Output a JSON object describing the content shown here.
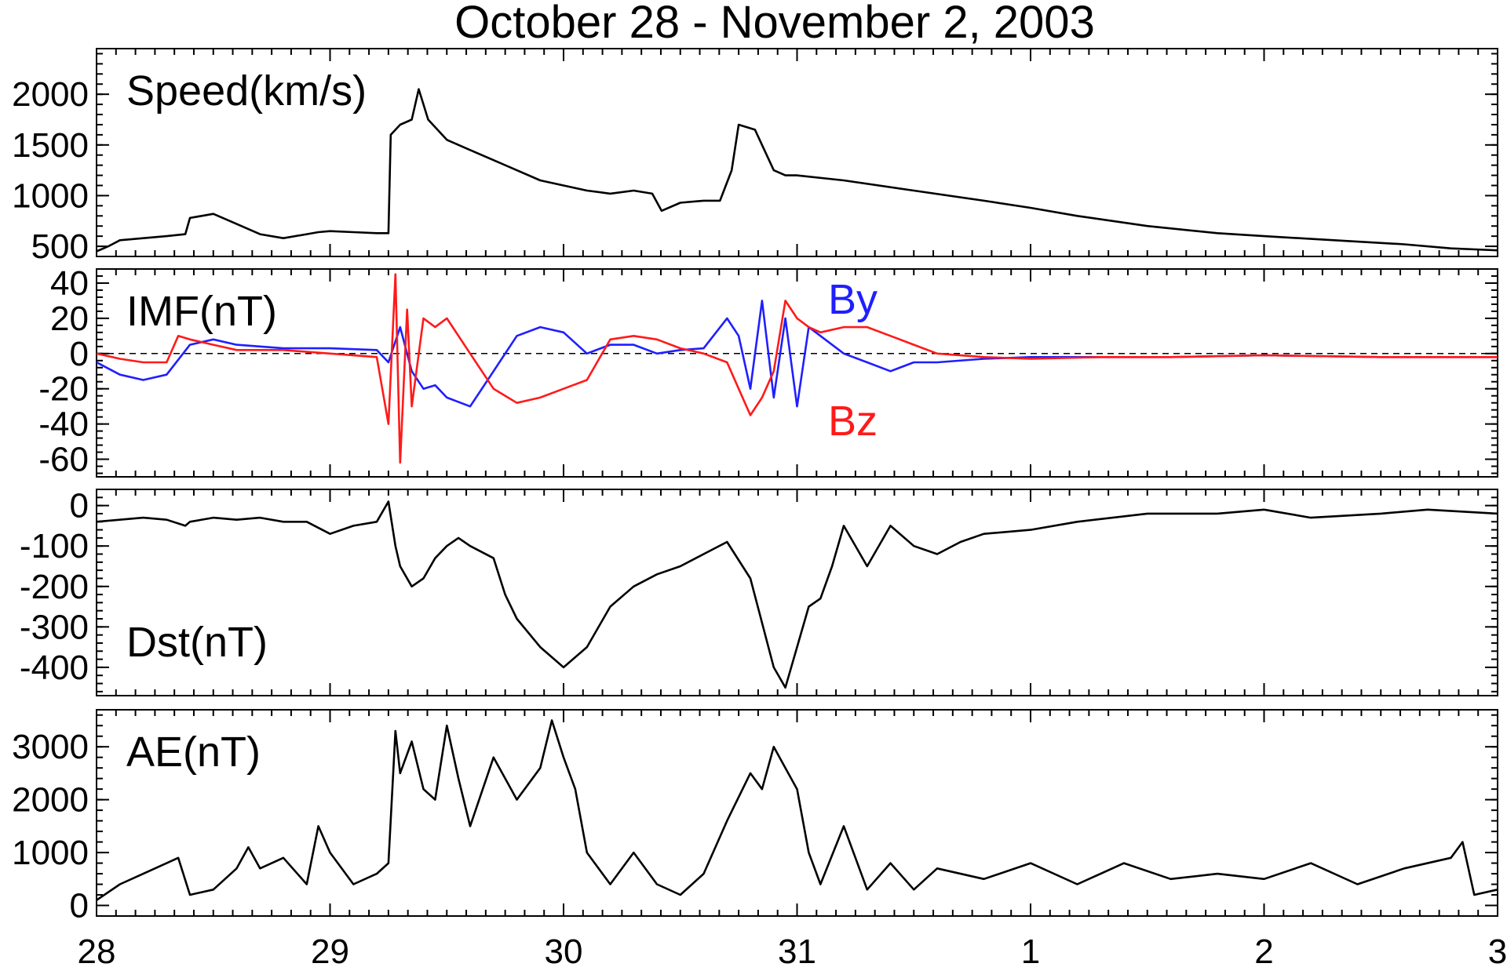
{
  "chart_data": {
    "type": "line",
    "title": "October 28 - November 2, 2003",
    "x_tick_labels": [
      "28",
      "29",
      "30",
      "31",
      "1",
      "2",
      "3"
    ],
    "x_range_days": [
      0,
      6
    ],
    "panels": [
      {
        "name": "speed",
        "label": "Speed(km/s)",
        "ylim": [
          400,
          2450
        ],
        "yticks": [
          500,
          1000,
          1500,
          2000
        ],
        "ytick_labels": [
          "500",
          "1000",
          "1500",
          "2000"
        ],
        "series": [
          {
            "color": "#000000",
            "x": [
              0,
              0.05,
              0.1,
              0.2,
              0.3,
              0.38,
              0.4,
              0.45,
              0.5,
              0.6,
              0.7,
              0.8,
              0.9,
              0.95,
              1.0,
              1.1,
              1.2,
              1.25,
              1.26,
              1.3,
              1.35,
              1.38,
              1.42,
              1.5,
              1.6,
              1.7,
              1.8,
              1.9,
              2.0,
              2.1,
              2.2,
              2.3,
              2.38,
              2.42,
              2.5,
              2.6,
              2.67,
              2.72,
              2.75,
              2.82,
              2.9,
              2.95,
              3.0,
              3.2,
              3.5,
              3.8,
              4.0,
              4.2,
              4.5,
              4.8,
              5.0,
              5.3,
              5.6,
              5.8,
              6.0
            ],
            "y": [
              450,
              500,
              560,
              580,
              600,
              620,
              780,
              800,
              820,
              720,
              620,
              580,
              620,
              640,
              650,
              640,
              630,
              630,
              1600,
              1700,
              1750,
              2050,
              1750,
              1550,
              1450,
              1350,
              1250,
              1150,
              1100,
              1050,
              1020,
              1050,
              1020,
              850,
              930,
              950,
              950,
              1250,
              1700,
              1650,
              1250,
              1200,
              1200,
              1150,
              1050,
              950,
              880,
              800,
              700,
              630,
              600,
              560,
              520,
              480,
              460
            ]
          }
        ]
      },
      {
        "name": "imf",
        "label": "IMF(nT)",
        "ylim": [
          -70,
          48
        ],
        "yticks": [
          -60,
          -40,
          -20,
          0,
          20,
          40
        ],
        "ytick_labels": [
          "-60",
          "-40",
          "-20",
          "0",
          "20",
          "40"
        ],
        "zero_line": true,
        "series": [
          {
            "name": "By",
            "color": "#1f1fff",
            "x": [
              0,
              0.1,
              0.2,
              0.3,
              0.4,
              0.5,
              0.6,
              0.8,
              1.0,
              1.2,
              1.25,
              1.3,
              1.35,
              1.4,
              1.45,
              1.5,
              1.6,
              1.7,
              1.8,
              1.9,
              2.0,
              2.1,
              2.2,
              2.3,
              2.4,
              2.5,
              2.6,
              2.7,
              2.75,
              2.8,
              2.85,
              2.9,
              2.95,
              3.0,
              3.05,
              3.1,
              3.2,
              3.3,
              3.4,
              3.5,
              3.6,
              3.8,
              4.0,
              4.3,
              4.6,
              5.0,
              5.5,
              6.0
            ],
            "y": [
              -5,
              -12,
              -15,
              -12,
              5,
              8,
              5,
              3,
              3,
              2,
              -5,
              15,
              -10,
              -20,
              -18,
              -25,
              -30,
              -10,
              10,
              15,
              12,
              0,
              5,
              5,
              0,
              2,
              3,
              20,
              10,
              -20,
              30,
              -25,
              20,
              -30,
              15,
              10,
              0,
              -5,
              -10,
              -5,
              -5,
              -3,
              -2,
              -2,
              -2,
              -1,
              -2,
              -2
            ]
          },
          {
            "name": "Bz",
            "color": "#ff1a1a",
            "x": [
              0,
              0.1,
              0.2,
              0.3,
              0.35,
              0.4,
              0.5,
              0.6,
              0.8,
              1.0,
              1.2,
              1.25,
              1.28,
              1.3,
              1.33,
              1.35,
              1.4,
              1.45,
              1.5,
              1.6,
              1.7,
              1.8,
              1.9,
              2.0,
              2.1,
              2.2,
              2.3,
              2.4,
              2.5,
              2.6,
              2.7,
              2.75,
              2.8,
              2.85,
              2.9,
              2.95,
              3.0,
              3.05,
              3.1,
              3.2,
              3.3,
              3.4,
              3.5,
              3.6,
              3.8,
              4.0,
              4.3,
              4.6,
              5.0,
              5.5,
              6.0
            ],
            "y": [
              0,
              -3,
              -5,
              -5,
              10,
              8,
              5,
              2,
              2,
              0,
              -2,
              -40,
              45,
              -62,
              25,
              -30,
              20,
              15,
              20,
              0,
              -20,
              -28,
              -25,
              -20,
              -15,
              8,
              10,
              8,
              3,
              0,
              -5,
              -20,
              -35,
              -25,
              -10,
              30,
              20,
              15,
              12,
              15,
              15,
              10,
              5,
              0,
              -2,
              -3,
              -2,
              -2,
              -1,
              -2,
              -2
            ]
          }
        ]
      },
      {
        "name": "dst",
        "label": "Dst(nT)",
        "ylim": [
          -470,
          40
        ],
        "yticks": [
          -400,
          -300,
          -200,
          -100,
          0
        ],
        "ytick_labels": [
          "-400",
          "-300",
          "-200",
          "-100",
          "0"
        ],
        "series": [
          {
            "color": "#000000",
            "x": [
              0,
              0.2,
              0.3,
              0.38,
              0.4,
              0.5,
              0.6,
              0.7,
              0.8,
              0.9,
              1.0,
              1.1,
              1.2,
              1.25,
              1.28,
              1.3,
              1.35,
              1.4,
              1.45,
              1.5,
              1.55,
              1.6,
              1.7,
              1.75,
              1.8,
              1.9,
              2.0,
              2.1,
              2.2,
              2.3,
              2.4,
              2.5,
              2.6,
              2.7,
              2.8,
              2.9,
              2.95,
              3.0,
              3.05,
              3.1,
              3.15,
              3.2,
              3.3,
              3.4,
              3.5,
              3.6,
              3.7,
              3.8,
              4.0,
              4.2,
              4.5,
              4.8,
              5.0,
              5.2,
              5.5,
              5.7,
              6.0
            ],
            "y": [
              -40,
              -30,
              -35,
              -50,
              -40,
              -30,
              -35,
              -30,
              -40,
              -40,
              -70,
              -50,
              -40,
              10,
              -100,
              -150,
              -200,
              -180,
              -130,
              -100,
              -80,
              -100,
              -130,
              -220,
              -280,
              -350,
              -400,
              -350,
              -250,
              -200,
              -170,
              -150,
              -120,
              -90,
              -180,
              -400,
              -450,
              -350,
              -250,
              -230,
              -150,
              -50,
              -150,
              -50,
              -100,
              -120,
              -90,
              -70,
              -60,
              -40,
              -20,
              -20,
              -10,
              -30,
              -20,
              -10,
              -20
            ]
          }
        ]
      },
      {
        "name": "ae",
        "label": "AE(nT)",
        "ylim": [
          -200,
          3700
        ],
        "yticks": [
          0,
          1000,
          2000,
          3000
        ],
        "ytick_labels": [
          "0",
          "1000",
          "2000",
          "3000"
        ],
        "series": [
          {
            "color": "#000000",
            "x": [
              0,
              0.1,
              0.2,
              0.3,
              0.35,
              0.4,
              0.5,
              0.6,
              0.65,
              0.7,
              0.8,
              0.9,
              0.95,
              1.0,
              1.1,
              1.2,
              1.25,
              1.28,
              1.3,
              1.35,
              1.4,
              1.45,
              1.5,
              1.55,
              1.6,
              1.7,
              1.8,
              1.9,
              1.95,
              2.0,
              2.05,
              2.1,
              2.2,
              2.3,
              2.4,
              2.5,
              2.6,
              2.7,
              2.8,
              2.85,
              2.9,
              2.95,
              3.0,
              3.05,
              3.1,
              3.2,
              3.3,
              3.4,
              3.5,
              3.6,
              3.8,
              4.0,
              4.2,
              4.4,
              4.6,
              4.8,
              5.0,
              5.2,
              5.4,
              5.6,
              5.8,
              5.85,
              5.9,
              6.0
            ],
            "y": [
              100,
              400,
              600,
              800,
              900,
              200,
              300,
              700,
              1100,
              700,
              900,
              400,
              1500,
              1000,
              400,
              600,
              800,
              3300,
              2500,
              3100,
              2200,
              2000,
              3400,
              2400,
              1500,
              2800,
              2000,
              2600,
              3500,
              2800,
              2200,
              1000,
              400,
              1000,
              400,
              200,
              600,
              1600,
              2500,
              2200,
              3000,
              2600,
              2200,
              1000,
              400,
              1500,
              300,
              800,
              300,
              700,
              500,
              800,
              400,
              800,
              500,
              600,
              500,
              800,
              400,
              700,
              900,
              1200,
              200,
              300
            ]
          }
        ]
      }
    ],
    "series_labels": [
      {
        "panel": "imf",
        "text": "By",
        "color": "#1f1fff"
      },
      {
        "panel": "imf",
        "text": "Bz",
        "color": "#ff1a1a"
      }
    ]
  }
}
